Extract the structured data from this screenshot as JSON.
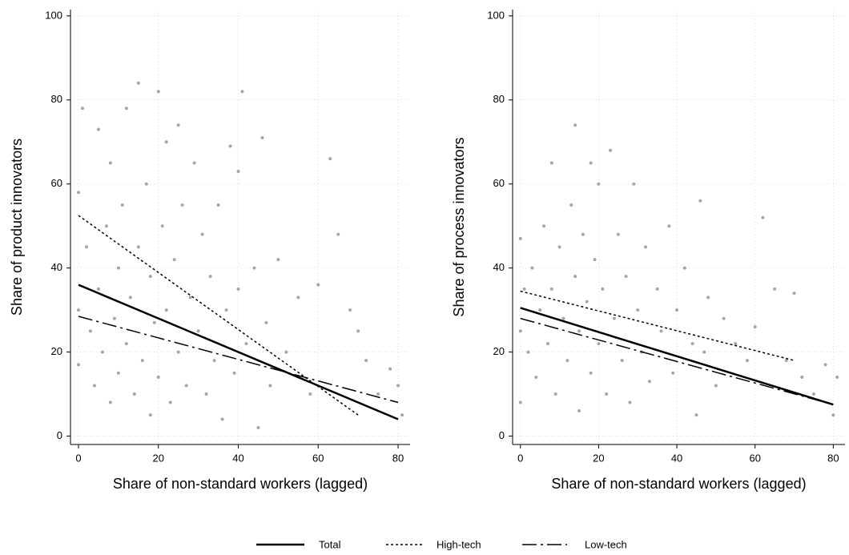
{
  "chart_data": [
    {
      "type": "scatter",
      "xlabel": "Share of non-standard workers (lagged)",
      "ylabel": "Share of product innovators",
      "xlim": [
        -2,
        83
      ],
      "ylim": [
        -2,
        101.5
      ],
      "xticks": [
        0,
        20,
        40,
        60,
        80
      ],
      "yticks": [
        0,
        20,
        40,
        60,
        80,
        100
      ],
      "grid": true,
      "points": {
        "color": "#a6a6a6",
        "x": [
          0,
          0,
          0,
          1,
          2,
          3,
          4,
          5,
          5,
          6,
          7,
          8,
          8,
          9,
          10,
          10,
          11,
          12,
          12,
          13,
          14,
          15,
          15,
          16,
          17,
          18,
          18,
          19,
          20,
          20,
          21,
          22,
          22,
          23,
          24,
          25,
          25,
          26,
          27,
          28,
          29,
          30,
          31,
          32,
          33,
          34,
          35,
          36,
          37,
          38,
          39,
          40,
          40,
          41,
          42,
          44,
          45,
          46,
          47,
          48,
          50,
          52,
          55,
          58,
          60,
          63,
          65,
          68,
          70,
          72,
          75,
          78,
          80,
          81
        ],
        "values": [
          58,
          30,
          17,
          78,
          45,
          25,
          12,
          73,
          35,
          20,
          50,
          8,
          65,
          28,
          40,
          15,
          55,
          22,
          78,
          33,
          10,
          84,
          45,
          18,
          60,
          5,
          38,
          27,
          82,
          14,
          50,
          70,
          30,
          8,
          42,
          20,
          74,
          55,
          12,
          33,
          65,
          25,
          48,
          10,
          38,
          18,
          55,
          4,
          30,
          69,
          15,
          63,
          35,
          82,
          22,
          40,
          2,
          71,
          27,
          12,
          42,
          20,
          33,
          10,
          36,
          66,
          48,
          30,
          25,
          18,
          10,
          16,
          12,
          5
        ]
      },
      "series": [
        {
          "name": "Total",
          "color": "#000000",
          "dash": "solid",
          "x": [
            0,
            80
          ],
          "values": [
            36,
            4
          ]
        },
        {
          "name": "High-tech",
          "color": "#000000",
          "dash": "dotted",
          "x": [
            0,
            70
          ],
          "values": [
            52.5,
            5
          ]
        },
        {
          "name": "Low-tech",
          "color": "#000000",
          "dash": "dashdot",
          "x": [
            0,
            80
          ],
          "values": [
            28.5,
            8
          ]
        }
      ]
    },
    {
      "type": "scatter",
      "xlabel": "Share of non-standard workers (lagged)",
      "ylabel": "Share of process innovators",
      "xlim": [
        -2,
        83
      ],
      "ylim": [
        -2,
        101.5
      ],
      "xticks": [
        0,
        20,
        40,
        60,
        80
      ],
      "yticks": [
        0,
        20,
        40,
        60,
        80,
        100
      ],
      "grid": true,
      "points": {
        "color": "#a6a6a6",
        "x": [
          0,
          0,
          0,
          1,
          2,
          3,
          4,
          5,
          6,
          7,
          8,
          8,
          9,
          10,
          11,
          12,
          13,
          14,
          14,
          15,
          15,
          16,
          17,
          18,
          18,
          19,
          20,
          20,
          21,
          22,
          23,
          24,
          25,
          26,
          27,
          28,
          29,
          30,
          31,
          32,
          33,
          35,
          36,
          38,
          39,
          40,
          42,
          44,
          45,
          46,
          47,
          48,
          50,
          52,
          55,
          58,
          60,
          62,
          65,
          68,
          70,
          72,
          75,
          78,
          80,
          81
        ],
        "values": [
          47,
          25,
          8,
          35,
          20,
          40,
          14,
          30,
          50,
          22,
          65,
          35,
          10,
          45,
          28,
          18,
          55,
          74,
          38,
          25,
          6,
          48,
          32,
          65,
          15,
          42,
          60,
          22,
          35,
          10,
          68,
          28,
          48,
          18,
          38,
          8,
          60,
          30,
          20,
          45,
          13,
          35,
          25,
          50,
          15,
          30,
          40,
          22,
          5,
          56,
          20,
          33,
          12,
          28,
          22,
          18,
          26,
          52,
          35,
          18,
          34,
          14,
          10,
          17,
          5,
          14
        ]
      },
      "series": [
        {
          "color": "#000000",
          "dash": "solid",
          "x": [
            0,
            80
          ],
          "values": [
            30.5,
            7.5
          ]
        },
        {
          "color": "#000000",
          "dash": "dotted",
          "x": [
            0,
            70
          ],
          "values": [
            34.5,
            18
          ]
        },
        {
          "color": "#000000",
          "dash": "dashdot",
          "x": [
            0,
            80
          ],
          "values": [
            28,
            7.5
          ]
        }
      ]
    }
  ]
}
